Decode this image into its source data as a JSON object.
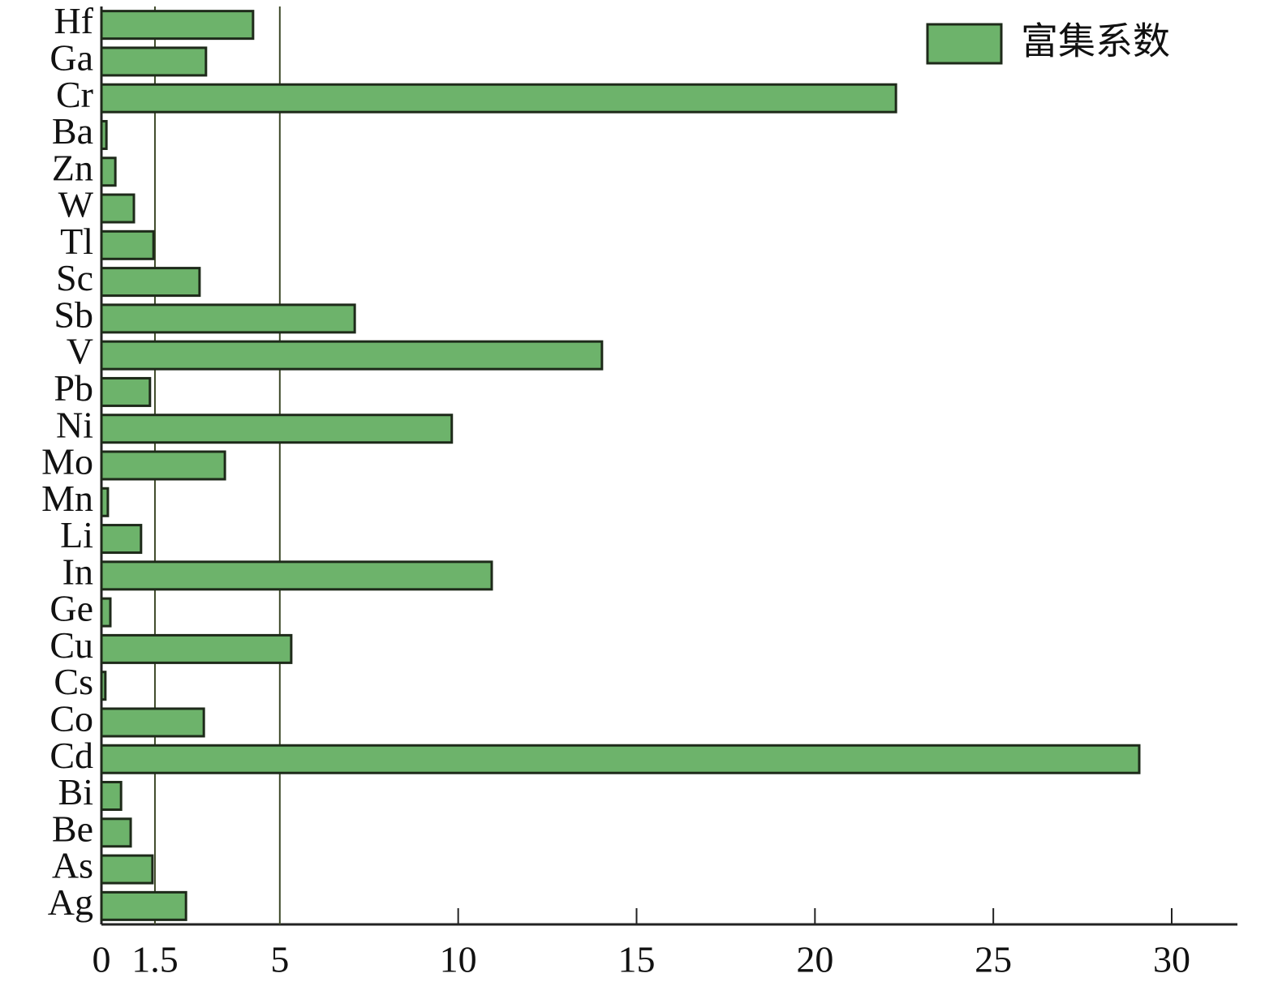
{
  "chart_data": {
    "type": "barh",
    "categories": [
      "Hf",
      "Ga",
      "Cr",
      "Ba",
      "Zn",
      "W",
      "Tl",
      "Sc",
      "Sb",
      "V",
      "Pb",
      "Ni",
      "Mo",
      "Mn",
      "Li",
      "In",
      "Ge",
      "Cu",
      "Cs",
      "Co",
      "Cd",
      "Bi",
      "Be",
      "As",
      "Ag"
    ],
    "series": [
      {
        "name": "富集系数",
        "color": "#6db36b",
        "values": [
          4.25,
          2.93,
          22.27,
          0.14,
          0.39,
          0.91,
          1.46,
          2.75,
          7.1,
          14.03,
          1.36,
          9.82,
          3.46,
          0.18,
          1.11,
          10.94,
          0.25,
          5.32,
          0.11,
          2.87,
          29.09,
          0.55,
          0.82,
          1.43,
          2.37
        ]
      }
    ],
    "xlim": [
      0,
      31.8
    ],
    "xticks": [
      0,
      1.5,
      5,
      10,
      15,
      20,
      25,
      30
    ],
    "reference_lines": [
      1.5,
      5
    ],
    "legend": "top-right"
  }
}
